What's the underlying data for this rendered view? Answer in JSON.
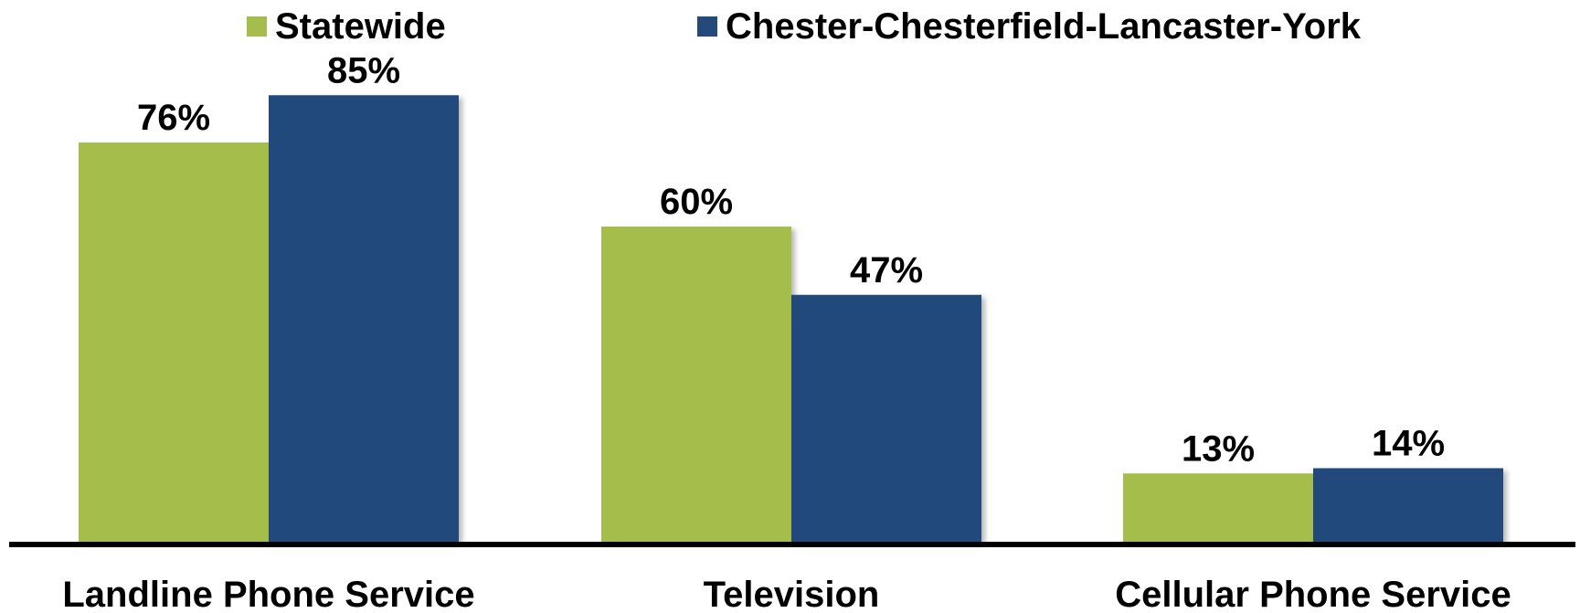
{
  "chart_data": {
    "type": "bar",
    "title": "",
    "xlabel": "",
    "ylabel": "",
    "categories": [
      "Landline Phone Service",
      "Television",
      "Cellular Phone Service"
    ],
    "series": [
      {
        "name": "Statewide",
        "color": "#a5bd4c",
        "values": [
          76,
          60,
          13
        ],
        "labels": [
          "76%",
          "60%",
          "13%"
        ]
      },
      {
        "name": "Chester-Chesterfield-Lancaster-York",
        "color": "#244a7c",
        "values": [
          85,
          47,
          14
        ],
        "labels": [
          "85%",
          "47%",
          "14%"
        ]
      }
    ],
    "ylim": [
      0,
      100
    ],
    "grid": false,
    "legend_position": "top"
  }
}
